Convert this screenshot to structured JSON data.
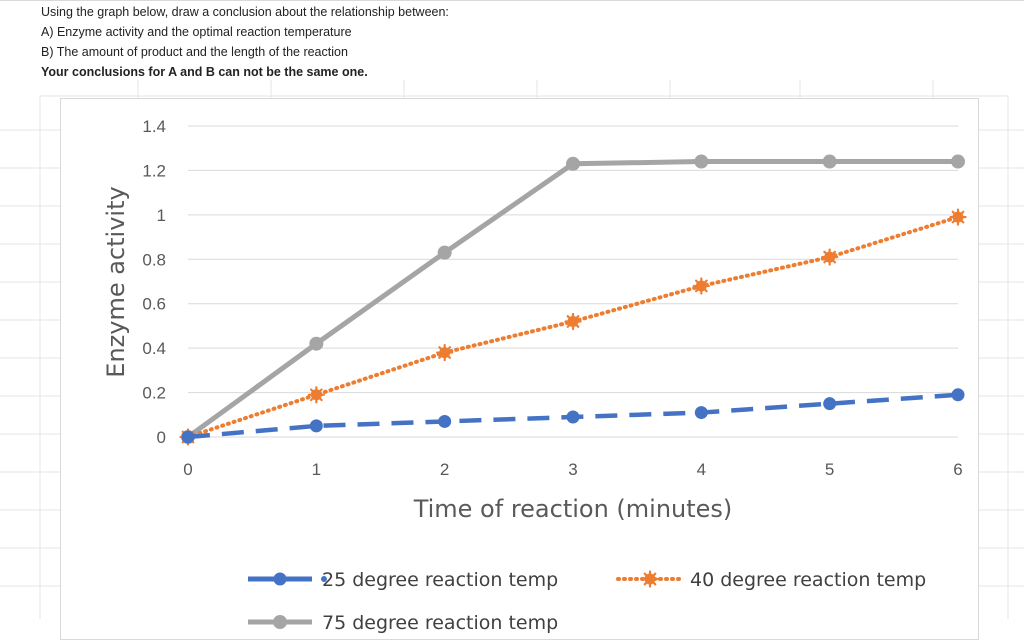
{
  "prompt": {
    "line1": "Using the graph below, draw a conclusion about the relationship between:",
    "line2": "A) Enzyme activity and the optimal reaction temperature",
    "line3": "B) The amount of product and the length of the reaction",
    "line4": "Your conclusions for A and B can not be the same one."
  },
  "chart_data": {
    "type": "line",
    "xlabel": "Time of reaction (minutes)",
    "ylabel": "Enzyme activity",
    "x": [
      0,
      1,
      2,
      3,
      4,
      5,
      6
    ],
    "x_ticks": [
      "0",
      "1",
      "2",
      "3",
      "4",
      "5",
      "6"
    ],
    "y_ticks": [
      "0",
      "0.2",
      "0.4",
      "0.6",
      "0.8",
      "1",
      "1.2",
      "1.4"
    ],
    "ylim": [
      0,
      1.4
    ],
    "xlim": [
      0,
      6
    ],
    "grid": "horizontal",
    "legend_position": "bottom",
    "series": [
      {
        "name": "25 degree reaction temp",
        "color": "#4472c4",
        "style": "dashed",
        "values": [
          0,
          0.05,
          0.07,
          0.09,
          0.11,
          0.15,
          0.19
        ]
      },
      {
        "name": "40 degree reaction temp",
        "color": "#ed7d31",
        "style": "dotted",
        "values": [
          0,
          0.19,
          0.38,
          0.52,
          0.68,
          0.81,
          0.99
        ]
      },
      {
        "name": "75 degree reaction temp",
        "color": "#a5a5a5",
        "style": "solid",
        "values": [
          0,
          0.42,
          0.83,
          1.23,
          1.24,
          1.24,
          1.24
        ]
      }
    ]
  }
}
